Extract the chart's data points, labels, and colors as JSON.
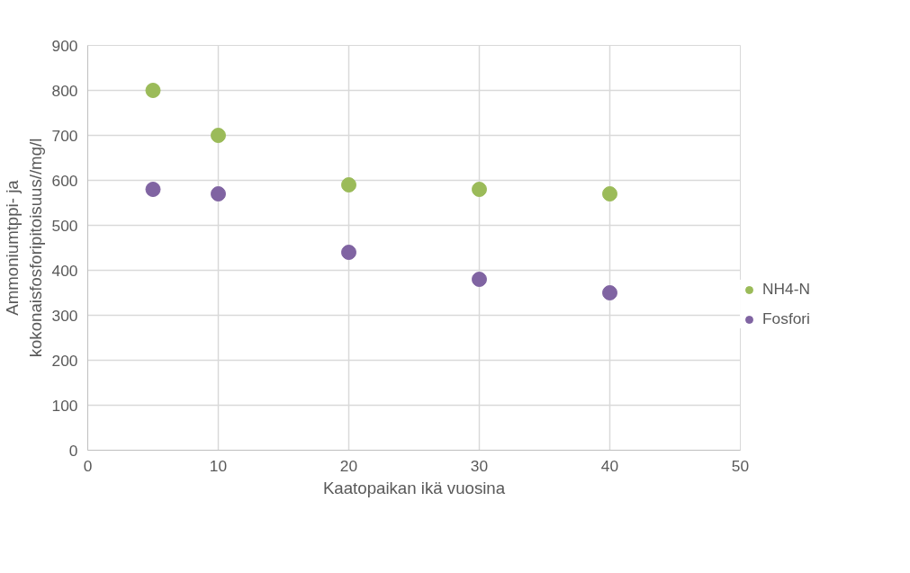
{
  "chart_data": {
    "type": "scatter",
    "xlabel": "Kaatopaikan ikä vuosina",
    "ylabel": "Ammoniumtppi- ja kokonaisfosforipitoisuus//mg/l",
    "x": [
      5,
      10,
      20,
      30,
      40
    ],
    "series": [
      {
        "name": "NH4-N",
        "color": "#9bbb59",
        "values": [
          800,
          700,
          590,
          580,
          570
        ]
      },
      {
        "name": "Fosfori",
        "color": "#8064a2",
        "values": [
          580,
          570,
          440,
          380,
          350
        ]
      }
    ],
    "xlim": [
      0,
      50
    ],
    "xticks": [
      0,
      10,
      20,
      30,
      40,
      50
    ],
    "ylim": [
      0,
      900
    ],
    "yticks": [
      0,
      100,
      200,
      300,
      400,
      500,
      600,
      700,
      800,
      900
    ],
    "grid": true,
    "legend": "right",
    "marker": "circle"
  }
}
